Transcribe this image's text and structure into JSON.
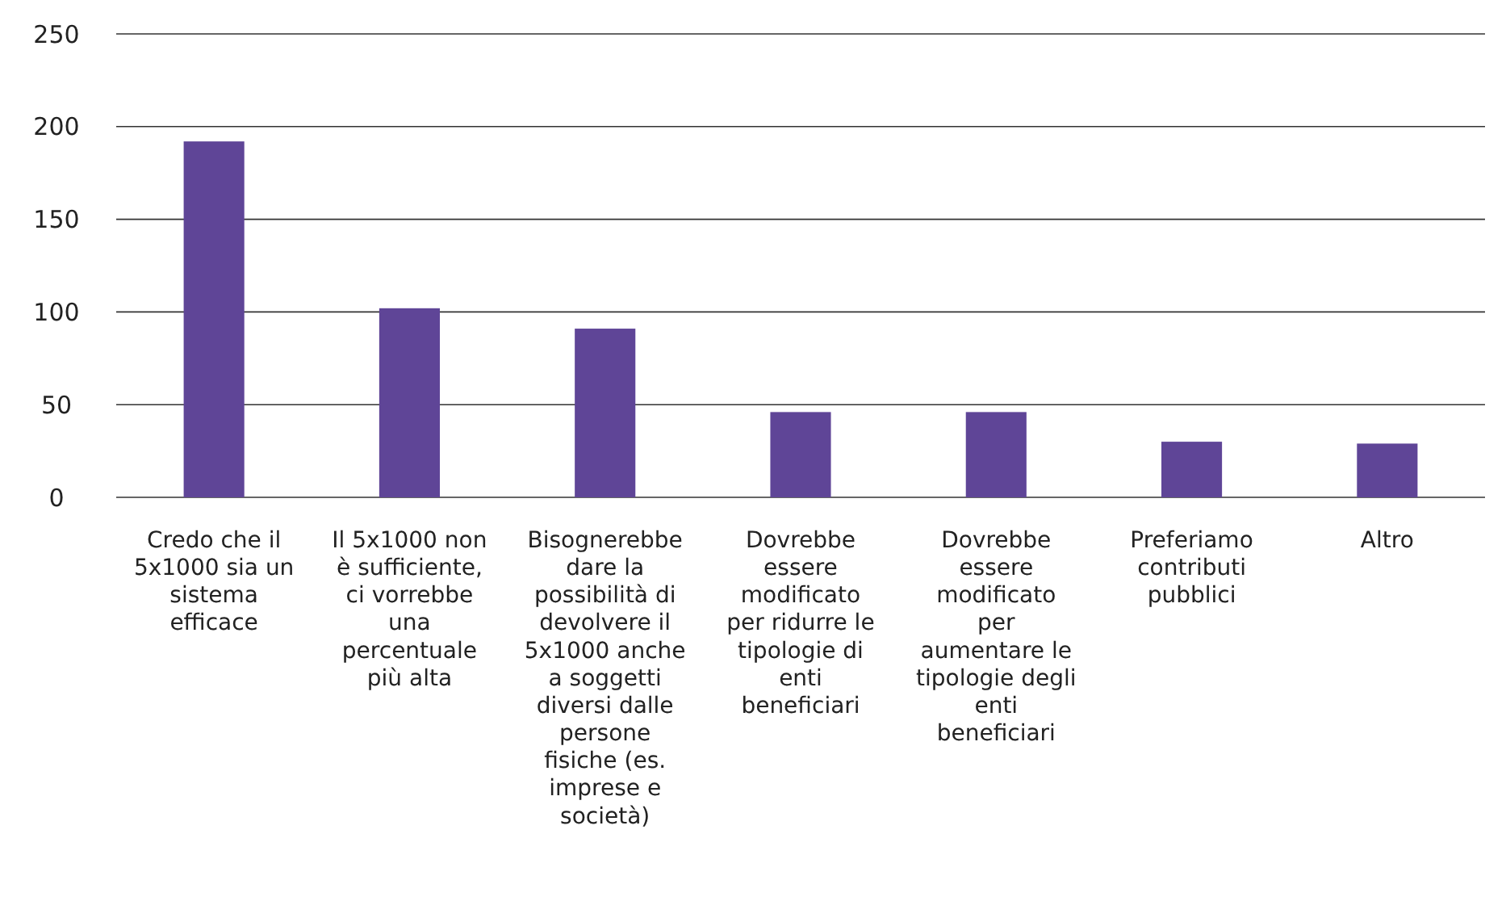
{
  "chart_data": {
    "type": "bar",
    "categories": [
      "Credo che il 5x1000 sia un sistema efficace",
      "Il 5x1000 non è sufficiente, ci vorrebbe una percentuale più alta",
      "Bisognerebbe dare la possibilità di devolvere il 5x1000 anche a soggetti diversi dalle persone fisiche (es. imprese e società)",
      "Dovrebbe essere modificato per ridurre le tipologie di enti beneficiari",
      "Dovrebbe essere modificato per aumentare le tipologie degli enti beneficiari",
      "Preferiamo contributi pubblici",
      "Altro"
    ],
    "values": [
      192,
      102,
      91,
      46,
      46,
      30,
      29
    ],
    "color": "#5f4597",
    "ylim": [
      0,
      250
    ],
    "yticks": [
      0,
      50,
      100,
      150,
      200,
      250
    ],
    "grid": "y"
  }
}
